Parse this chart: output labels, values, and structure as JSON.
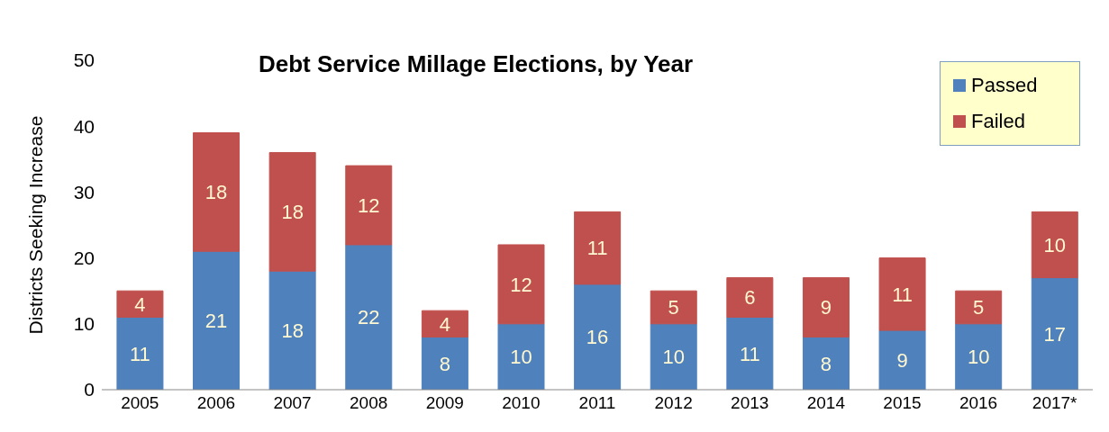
{
  "chart_data": {
    "type": "bar",
    "title": "Debt Service Millage Elections, by Year",
    "ylabel": "Districts Seeking Increase",
    "categories": [
      "2005",
      "2006",
      "2007",
      "2008",
      "2009",
      "2010",
      "2011",
      "2012",
      "2013",
      "2014",
      "2015",
      "2016",
      "2017*"
    ],
    "series": [
      {
        "name": "Passed",
        "color": "#4f81bd",
        "values": [
          11,
          21,
          18,
          22,
          8,
          10,
          16,
          10,
          11,
          8,
          9,
          10,
          17
        ]
      },
      {
        "name": "Failed",
        "color": "#c0504d",
        "values": [
          4,
          18,
          18,
          12,
          4,
          12,
          11,
          5,
          6,
          9,
          11,
          5,
          10
        ]
      }
    ],
    "stacked": true,
    "ylim": [
      0,
      50
    ],
    "yticks": [
      0,
      10,
      20,
      30,
      40,
      50
    ],
    "legend": "top right",
    "data_labels": true
  }
}
